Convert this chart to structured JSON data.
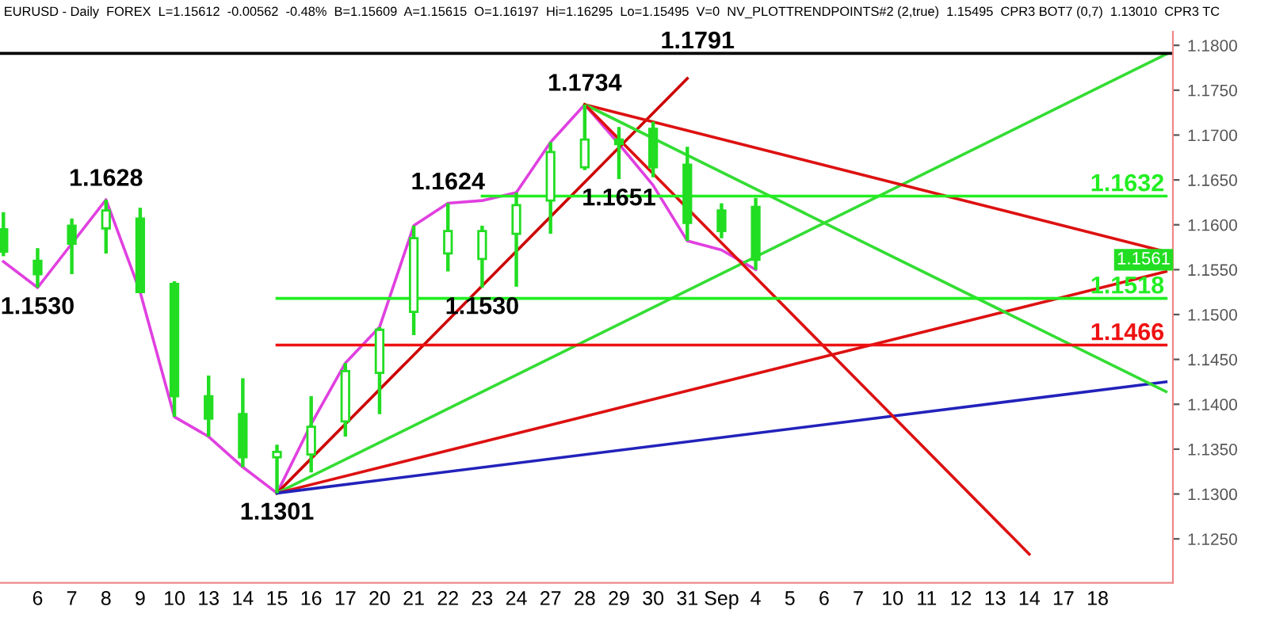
{
  "chart_data": {
    "type": "candlestick",
    "title": "EURUSD - Daily  FOREX  L=1.15612  -0.00562  -0.48%  B=1.15609  A=1.15615  O=1.16197  Hi=1.16295  Lo=1.15495  V=0  NV_PLOTTRENDPOINTS#2 (2,true)  1.15495  CPR3 BOT7 (0,7)  1.13010  CPR3 TC",
    "categories": [
      null,
      "6",
      "7",
      "8",
      "9",
      "10",
      "13",
      "14",
      "15",
      "16",
      "17",
      "20",
      "21",
      "22",
      "23",
      "24",
      "27",
      "28",
      "29",
      "30",
      "31",
      "Sep",
      "4",
      "5",
      "6",
      "7",
      "10",
      "11",
      "12",
      "13",
      "14",
      "17",
      "18",
      null,
      null
    ],
    "color": "#22dd22",
    "ohlc": [
      [
        1.1595,
        1.1614,
        1.1565,
        1.157
      ],
      [
        1.156,
        1.1574,
        1.153,
        1.1545
      ],
      [
        1.1599,
        1.1607,
        1.1545,
        1.1579
      ],
      [
        1.1596,
        1.1628,
        1.1568,
        1.1616
      ],
      [
        1.1607,
        1.1619,
        1.1525,
        1.1525
      ],
      [
        1.1534,
        1.1537,
        1.1386,
        1.1409
      ],
      [
        1.1409,
        1.1432,
        1.1364,
        1.1384
      ],
      [
        1.1389,
        1.1429,
        1.133,
        1.1341
      ],
      [
        1.1341,
        1.1355,
        1.1301,
        1.1347
      ],
      [
        1.1344,
        1.1409,
        1.1324,
        1.1375
      ],
      [
        1.1381,
        1.1446,
        1.1364,
        1.1437
      ],
      [
        1.1435,
        1.1486,
        1.1389,
        1.1483
      ],
      [
        1.1503,
        1.1599,
        1.1477,
        1.1585
      ],
      [
        1.1568,
        1.1624,
        1.1548,
        1.1593
      ],
      [
        1.1562,
        1.1599,
        1.153,
        1.1593
      ],
      [
        1.159,
        1.1636,
        1.1531,
        1.1622
      ],
      [
        1.1627,
        1.1692,
        1.159,
        1.1681
      ],
      [
        1.1664,
        1.1734,
        1.1661,
        1.1695
      ],
      [
        1.1695,
        1.1709,
        1.1651,
        1.169
      ],
      [
        1.1707,
        1.1715,
        1.1653,
        1.1664
      ],
      [
        1.1667,
        1.1687,
        1.1582,
        1.1602
      ],
      [
        1.1616,
        1.1624,
        1.1585,
        1.1593
      ],
      [
        1.162,
        1.163,
        1.155,
        1.1561
      ],
      null,
      null,
      null,
      null,
      null,
      null,
      null,
      null,
      null,
      null,
      null,
      null
    ],
    "series": [
      {
        "type": "line",
        "color": "#e040e0",
        "values": [
          1.1559,
          1.153,
          1.1579,
          1.1628,
          1.1525,
          1.1386,
          1.1364,
          1.133,
          1.1301,
          1.1378,
          1.1446,
          1.1486,
          1.1599,
          1.1624,
          1.1627,
          1.1636,
          1.1692,
          1.1734,
          1.169,
          1.1644,
          1.1582,
          1.1572,
          1.155,
          null,
          null,
          null,
          null,
          null,
          null,
          null,
          null,
          null,
          null,
          null,
          null
        ]
      },
      {
        "type": "line",
        "color": "#cc0000",
        "values": [
          null,
          null,
          null,
          null,
          null,
          null,
          null,
          null,
          1.1301,
          null,
          null,
          null,
          null,
          null,
          null,
          null,
          null,
          null,
          null,
          null,
          1.1763,
          null,
          null,
          null,
          null,
          null,
          null,
          null,
          null,
          null,
          null,
          null,
          null,
          null,
          null
        ]
      },
      {
        "type": "line",
        "color": "#33dd33",
        "values": [
          null,
          null,
          null,
          null,
          null,
          null,
          null,
          null,
          1.1301,
          null,
          null,
          null,
          null,
          null,
          null,
          null,
          null,
          null,
          null,
          null,
          null,
          null,
          null,
          null,
          null,
          null,
          null,
          null,
          null,
          null,
          null,
          null,
          null,
          null,
          1.179
        ]
      },
      {
        "type": "line",
        "color": "#dd1111",
        "values": [
          null,
          null,
          null,
          null,
          null,
          null,
          null,
          null,
          1.1301,
          null,
          null,
          null,
          null,
          null,
          null,
          null,
          null,
          null,
          null,
          null,
          null,
          null,
          null,
          null,
          null,
          null,
          null,
          null,
          null,
          null,
          null,
          null,
          null,
          null,
          1.1548
        ]
      },
      {
        "type": "line",
        "color": "#2222bb",
        "values": [
          null,
          null,
          null,
          null,
          null,
          null,
          null,
          null,
          1.1301,
          null,
          null,
          null,
          null,
          null,
          null,
          null,
          null,
          null,
          null,
          null,
          null,
          null,
          null,
          null,
          null,
          null,
          null,
          null,
          null,
          null,
          null,
          null,
          null,
          null,
          1.1425
        ]
      },
      {
        "type": "line",
        "color": "#dd1111",
        "values": [
          null,
          null,
          null,
          null,
          null,
          null,
          null,
          null,
          null,
          null,
          null,
          null,
          null,
          null,
          null,
          null,
          null,
          1.1734,
          null,
          null,
          null,
          null,
          null,
          null,
          null,
          null,
          null,
          null,
          null,
          null,
          null,
          null,
          null,
          null,
          1.157
        ]
      },
      {
        "type": "line",
        "color": "#33dd33",
        "values": [
          null,
          null,
          null,
          null,
          null,
          null,
          null,
          null,
          null,
          null,
          null,
          null,
          null,
          null,
          null,
          null,
          null,
          1.1734,
          null,
          null,
          null,
          null,
          null,
          null,
          null,
          null,
          null,
          null,
          null,
          null,
          null,
          null,
          null,
          null,
          1.1414
        ]
      },
      {
        "type": "line",
        "color": "#dd1111",
        "values": [
          null,
          null,
          null,
          null,
          null,
          null,
          null,
          null,
          null,
          null,
          null,
          null,
          null,
          null,
          null,
          null,
          null,
          1.1734,
          null,
          null,
          null,
          null,
          null,
          null,
          null,
          null,
          null,
          null,
          null,
          null,
          1.1233,
          null,
          null,
          null,
          null
        ]
      },
      {
        "type": "line",
        "name": "1.1632",
        "color": "#22ee22",
        "values": [
          null,
          null,
          null,
          null,
          null,
          null,
          null,
          null,
          null,
          null,
          null,
          null,
          null,
          null,
          1.1632,
          null,
          null,
          null,
          null,
          null,
          null,
          null,
          null,
          null,
          null,
          null,
          null,
          null,
          null,
          null,
          null,
          null,
          null,
          null,
          1.1632
        ]
      },
      {
        "type": "line",
        "name": "1.1518",
        "color": "#22ee22",
        "values": [
          null,
          null,
          null,
          null,
          null,
          null,
          null,
          null,
          1.1518,
          null,
          null,
          null,
          null,
          null,
          null,
          null,
          null,
          null,
          null,
          null,
          null,
          null,
          null,
          null,
          null,
          null,
          null,
          null,
          null,
          null,
          null,
          null,
          null,
          null,
          1.1518
        ]
      },
      {
        "type": "line",
        "name": "1.1466",
        "color": "#ee1111",
        "values": [
          null,
          null,
          null,
          null,
          null,
          null,
          null,
          null,
          1.1466,
          null,
          null,
          null,
          null,
          null,
          null,
          null,
          null,
          null,
          null,
          null,
          null,
          null,
          null,
          null,
          null,
          null,
          null,
          null,
          null,
          null,
          null,
          null,
          null,
          null,
          1.1466
        ]
      }
    ],
    "ref_lines": [
      {
        "axis": "y",
        "value": 1.1791,
        "label": "1.1791",
        "color": "#000000"
      }
    ],
    "annotations": [
      {
        "text": "1.1530",
        "x": "6",
        "y": 1.153
      },
      {
        "text": "1.1628",
        "x": "8",
        "y": 1.1628
      },
      {
        "text": "1.1301",
        "x": "15",
        "y": 1.1301
      },
      {
        "text": "1.1624",
        "x": "22",
        "y": 1.1624
      },
      {
        "text": "1.1530",
        "x": "23",
        "y": 1.153
      },
      {
        "text": "1.1734",
        "x": "28",
        "y": 1.1734
      },
      {
        "text": "1.1651",
        "x": "29",
        "y": 1.1651
      },
      {
        "text": "1.1561",
        "y": 1.1561
      }
    ],
    "ylim": [
      1.1201,
      1.1815
    ],
    "yticks": [
      {
        "value": 1.125,
        "label": "1.1250"
      },
      {
        "value": 1.13,
        "label": "1.1300"
      },
      {
        "value": 1.135,
        "label": "1.1350"
      },
      {
        "value": 1.14,
        "label": "1.1400"
      },
      {
        "value": 1.145,
        "label": "1.1450"
      },
      {
        "value": 1.15,
        "label": "1.1500"
      },
      {
        "value": 1.155,
        "label": "1.1550"
      },
      {
        "value": 1.16,
        "label": "1.1600"
      },
      {
        "value": 1.165,
        "label": "1.1650"
      },
      {
        "value": 1.17,
        "label": "1.1700"
      },
      {
        "value": 1.175,
        "label": "1.1750"
      },
      {
        "value": 1.18,
        "label": "1.1800"
      }
    ],
    "grid": false,
    "legend": false
  }
}
